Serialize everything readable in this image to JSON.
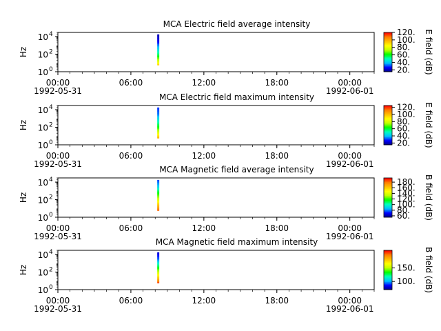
{
  "figure": {
    "background": "#ffffff",
    "colormap": [
      "#00007f",
      "#0000ff",
      "#00bfff",
      "#00ffbf",
      "#00ff00",
      "#bfff00",
      "#ffff00",
      "#ffbf00",
      "#ff7f00",
      "#ff0000"
    ]
  },
  "chart_data": [
    {
      "type": "heatmap",
      "title": "MCA  Electric field average intensity",
      "ylabel": "Hz",
      "yscale": "log",
      "ylim": [
        1,
        30000
      ],
      "yticks": [
        {
          "value": 1,
          "base": "10",
          "exp": "0"
        },
        {
          "value": 100,
          "base": "10",
          "exp": "2"
        },
        {
          "value": 10000,
          "base": "10",
          "exp": "4"
        }
      ],
      "xlim": [
        "1992-05-31 00:00",
        "1992-06-01 02:00"
      ],
      "xticks": [
        {
          "time": "1992-05-31 00:00",
          "label": "00:00",
          "date": "1992-05-31"
        },
        {
          "time": "1992-05-31 06:00",
          "label": "06:00",
          "date": ""
        },
        {
          "time": "1992-05-31 12:00",
          "label": "12:00",
          "date": ""
        },
        {
          "time": "1992-05-31 18:00",
          "label": "18:00",
          "date": ""
        },
        {
          "time": "1992-06-01 00:00",
          "label": "00:00",
          "date": "1992-06-01"
        }
      ],
      "data_time_range": [
        "1992-05-31 08:10",
        "1992-05-31 08:20"
      ],
      "data_freq_range": [
        5.6,
        17800
      ],
      "data_profile": {
        "freq_hz": [
          5.6,
          10,
          30,
          100,
          300,
          1000,
          3000,
          17800
        ],
        "value": [
          95,
          85,
          70,
          55,
          45,
          35,
          25,
          20
        ]
      },
      "colorbar": {
        "label": "E field (dB)",
        "range": [
          15,
          120
        ],
        "ticks": [
          "20.",
          "40.",
          "60.",
          "80.",
          "100.",
          "120."
        ],
        "tick_values": [
          20,
          40,
          60,
          80,
          100,
          120
        ]
      }
    },
    {
      "type": "heatmap",
      "title": "MCA  Electric field maximum intensity",
      "ylabel": "Hz",
      "yscale": "log",
      "ylim": [
        1,
        30000
      ],
      "yticks": [
        {
          "value": 1,
          "base": "10",
          "exp": "0"
        },
        {
          "value": 100,
          "base": "10",
          "exp": "2"
        },
        {
          "value": 10000,
          "base": "10",
          "exp": "4"
        }
      ],
      "xlim": [
        "1992-05-31 00:00",
        "1992-06-01 02:00"
      ],
      "xticks": [
        {
          "time": "1992-05-31 00:00",
          "label": "00:00",
          "date": "1992-05-31"
        },
        {
          "time": "1992-05-31 06:00",
          "label": "06:00",
          "date": ""
        },
        {
          "time": "1992-05-31 12:00",
          "label": "12:00",
          "date": ""
        },
        {
          "time": "1992-05-31 18:00",
          "label": "18:00",
          "date": ""
        },
        {
          "time": "1992-06-01 00:00",
          "label": "00:00",
          "date": "1992-06-01"
        }
      ],
      "data_time_range": [
        "1992-05-31 08:10",
        "1992-05-31 08:20"
      ],
      "data_freq_range": [
        5.6,
        17800
      ],
      "data_profile": {
        "freq_hz": [
          5.6,
          10,
          30,
          100,
          300,
          1000,
          3000,
          17800
        ],
        "value": [
          105,
          95,
          80,
          65,
          55,
          45,
          35,
          30
        ]
      },
      "colorbar": {
        "label": "E field (dB)",
        "range": [
          15,
          125
        ],
        "ticks": [
          "20.",
          "40.",
          "60.",
          "80.",
          "100.",
          "120."
        ],
        "tick_values": [
          20,
          40,
          60,
          80,
          100,
          120
        ]
      }
    },
    {
      "type": "heatmap",
      "title": "MCA  Magnetic field average intensity",
      "ylabel": "Hz",
      "yscale": "log",
      "ylim": [
        1,
        30000
      ],
      "yticks": [
        {
          "value": 1,
          "base": "10",
          "exp": "0"
        },
        {
          "value": 100,
          "base": "10",
          "exp": "2"
        },
        {
          "value": 10000,
          "base": "10",
          "exp": "4"
        }
      ],
      "xlim": [
        "1992-05-31 00:00",
        "1992-06-01 02:00"
      ],
      "xticks": [
        {
          "time": "1992-05-31 00:00",
          "label": "00:00",
          "date": "1992-05-31"
        },
        {
          "time": "1992-05-31 06:00",
          "label": "06:00",
          "date": ""
        },
        {
          "time": "1992-05-31 12:00",
          "label": "12:00",
          "date": ""
        },
        {
          "time": "1992-05-31 18:00",
          "label": "18:00",
          "date": ""
        },
        {
          "time": "1992-06-01 00:00",
          "label": "00:00",
          "date": "1992-06-01"
        }
      ],
      "data_time_range": [
        "1992-05-31 08:10",
        "1992-05-31 08:20"
      ],
      "data_freq_range": [
        5.6,
        17800
      ],
      "data_profile": {
        "freq_hz": [
          5.6,
          10,
          30,
          100,
          300,
          1000,
          3000,
          17800
        ],
        "value": [
          185,
          175,
          160,
          140,
          125,
          110,
          90,
          75
        ]
      },
      "colorbar": {
        "label": "B field (dB)",
        "range": [
          55,
          195
        ],
        "ticks": [
          "60.",
          "80.",
          "100.",
          "120.",
          "140.",
          "160.",
          "180."
        ],
        "tick_values": [
          60,
          80,
          100,
          120,
          140,
          160,
          180
        ]
      }
    },
    {
      "type": "heatmap",
      "title": "MCA  Magnetic field maximum intensity",
      "ylabel": "Hz",
      "yscale": "log",
      "ylim": [
        1,
        30000
      ],
      "yticks": [
        {
          "value": 1,
          "base": "10",
          "exp": "0"
        },
        {
          "value": 100,
          "base": "10",
          "exp": "2"
        },
        {
          "value": 10000,
          "base": "10",
          "exp": "4"
        }
      ],
      "xlim": [
        "1992-05-31 00:00",
        "1992-06-01 02:00"
      ],
      "xticks": [
        {
          "time": "1992-05-31 00:00",
          "label": "00:00",
          "date": "1992-05-31"
        },
        {
          "time": "1992-05-31 06:00",
          "label": "06:00",
          "date": ""
        },
        {
          "time": "1992-05-31 12:00",
          "label": "12:00",
          "date": ""
        },
        {
          "time": "1992-05-31 18:00",
          "label": "18:00",
          "date": ""
        },
        {
          "time": "1992-06-01 00:00",
          "label": "00:00",
          "date": "1992-06-01"
        }
      ],
      "data_time_range": [
        "1992-05-31 08:10",
        "1992-05-31 08:20"
      ],
      "data_freq_range": [
        5.6,
        17800
      ],
      "data_profile": {
        "freq_hz": [
          5.6,
          10,
          30,
          100,
          300,
          1000,
          3000,
          17800
        ],
        "value": [
          210,
          195,
          175,
          155,
          135,
          115,
          95,
          80
        ]
      },
      "colorbar": {
        "label": "B field (dB)",
        "range": [
          70,
          215
        ],
        "ticks": [
          "100.",
          "150."
        ],
        "tick_values": [
          100,
          150
        ]
      }
    }
  ]
}
